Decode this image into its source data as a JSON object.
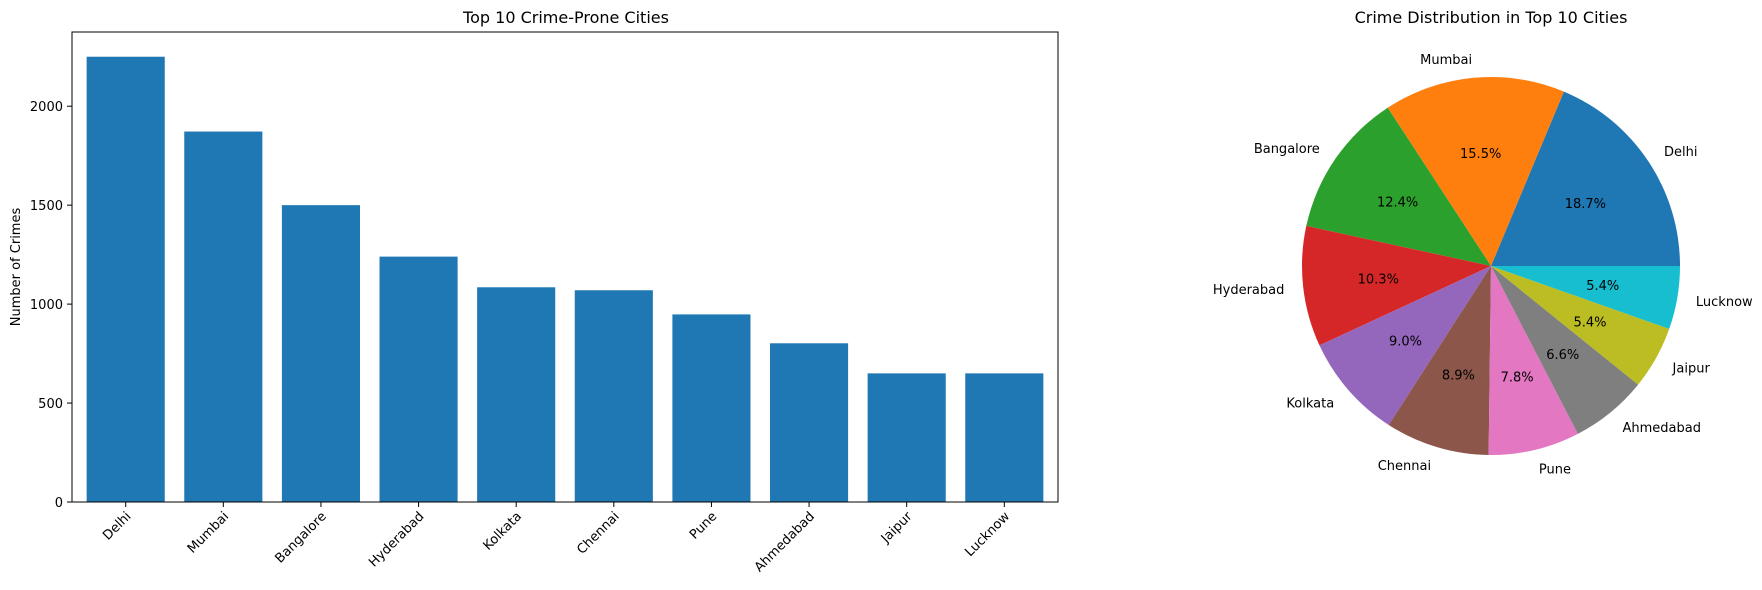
{
  "chart_data": [
    {
      "type": "bar",
      "title": "Top 10 Crime-Prone Cities",
      "xlabel": "",
      "ylabel": "Number of Crimes",
      "categories": [
        "Delhi",
        "Mumbai",
        "Bangalore",
        "Hyderabad",
        "Kolkata",
        "Chennai",
        "Pune",
        "Ahmedabad",
        "Jaipur",
        "Lucknow"
      ],
      "values": [
        2250,
        1872,
        1500,
        1240,
        1085,
        1070,
        948,
        802,
        650,
        650
      ],
      "ylim": [
        0,
        2375
      ],
      "yticks": [
        0,
        500,
        1000,
        1500,
        2000
      ],
      "bar_color": "#1f77b4",
      "grid": false,
      "xtick_rotation": 45
    },
    {
      "type": "pie",
      "title": "Crime Distribution in Top 10 Cities",
      "labels": [
        "Delhi",
        "Mumbai",
        "Bangalore",
        "Hyderabad",
        "Kolkata",
        "Chennai",
        "Pune",
        "Ahmedabad",
        "Jaipur",
        "Lucknow"
      ],
      "values": [
        18.7,
        15.5,
        12.4,
        10.3,
        9.0,
        8.9,
        7.8,
        6.6,
        5.4,
        5.4
      ],
      "pct_labels": [
        "18.7%",
        "15.5%",
        "12.4%",
        "10.3%",
        "9.0%",
        "8.9%",
        "7.8%",
        "6.6%",
        "5.4%",
        "5.4%"
      ],
      "colors": [
        "#1f77b4",
        "#ff7f0e",
        "#2ca02c",
        "#d62728",
        "#9467bd",
        "#8c564b",
        "#e377c2",
        "#7f7f7f",
        "#bcbd22",
        "#17becf"
      ],
      "start_angle_deg": 0,
      "direction": "counterclockwise"
    }
  ]
}
